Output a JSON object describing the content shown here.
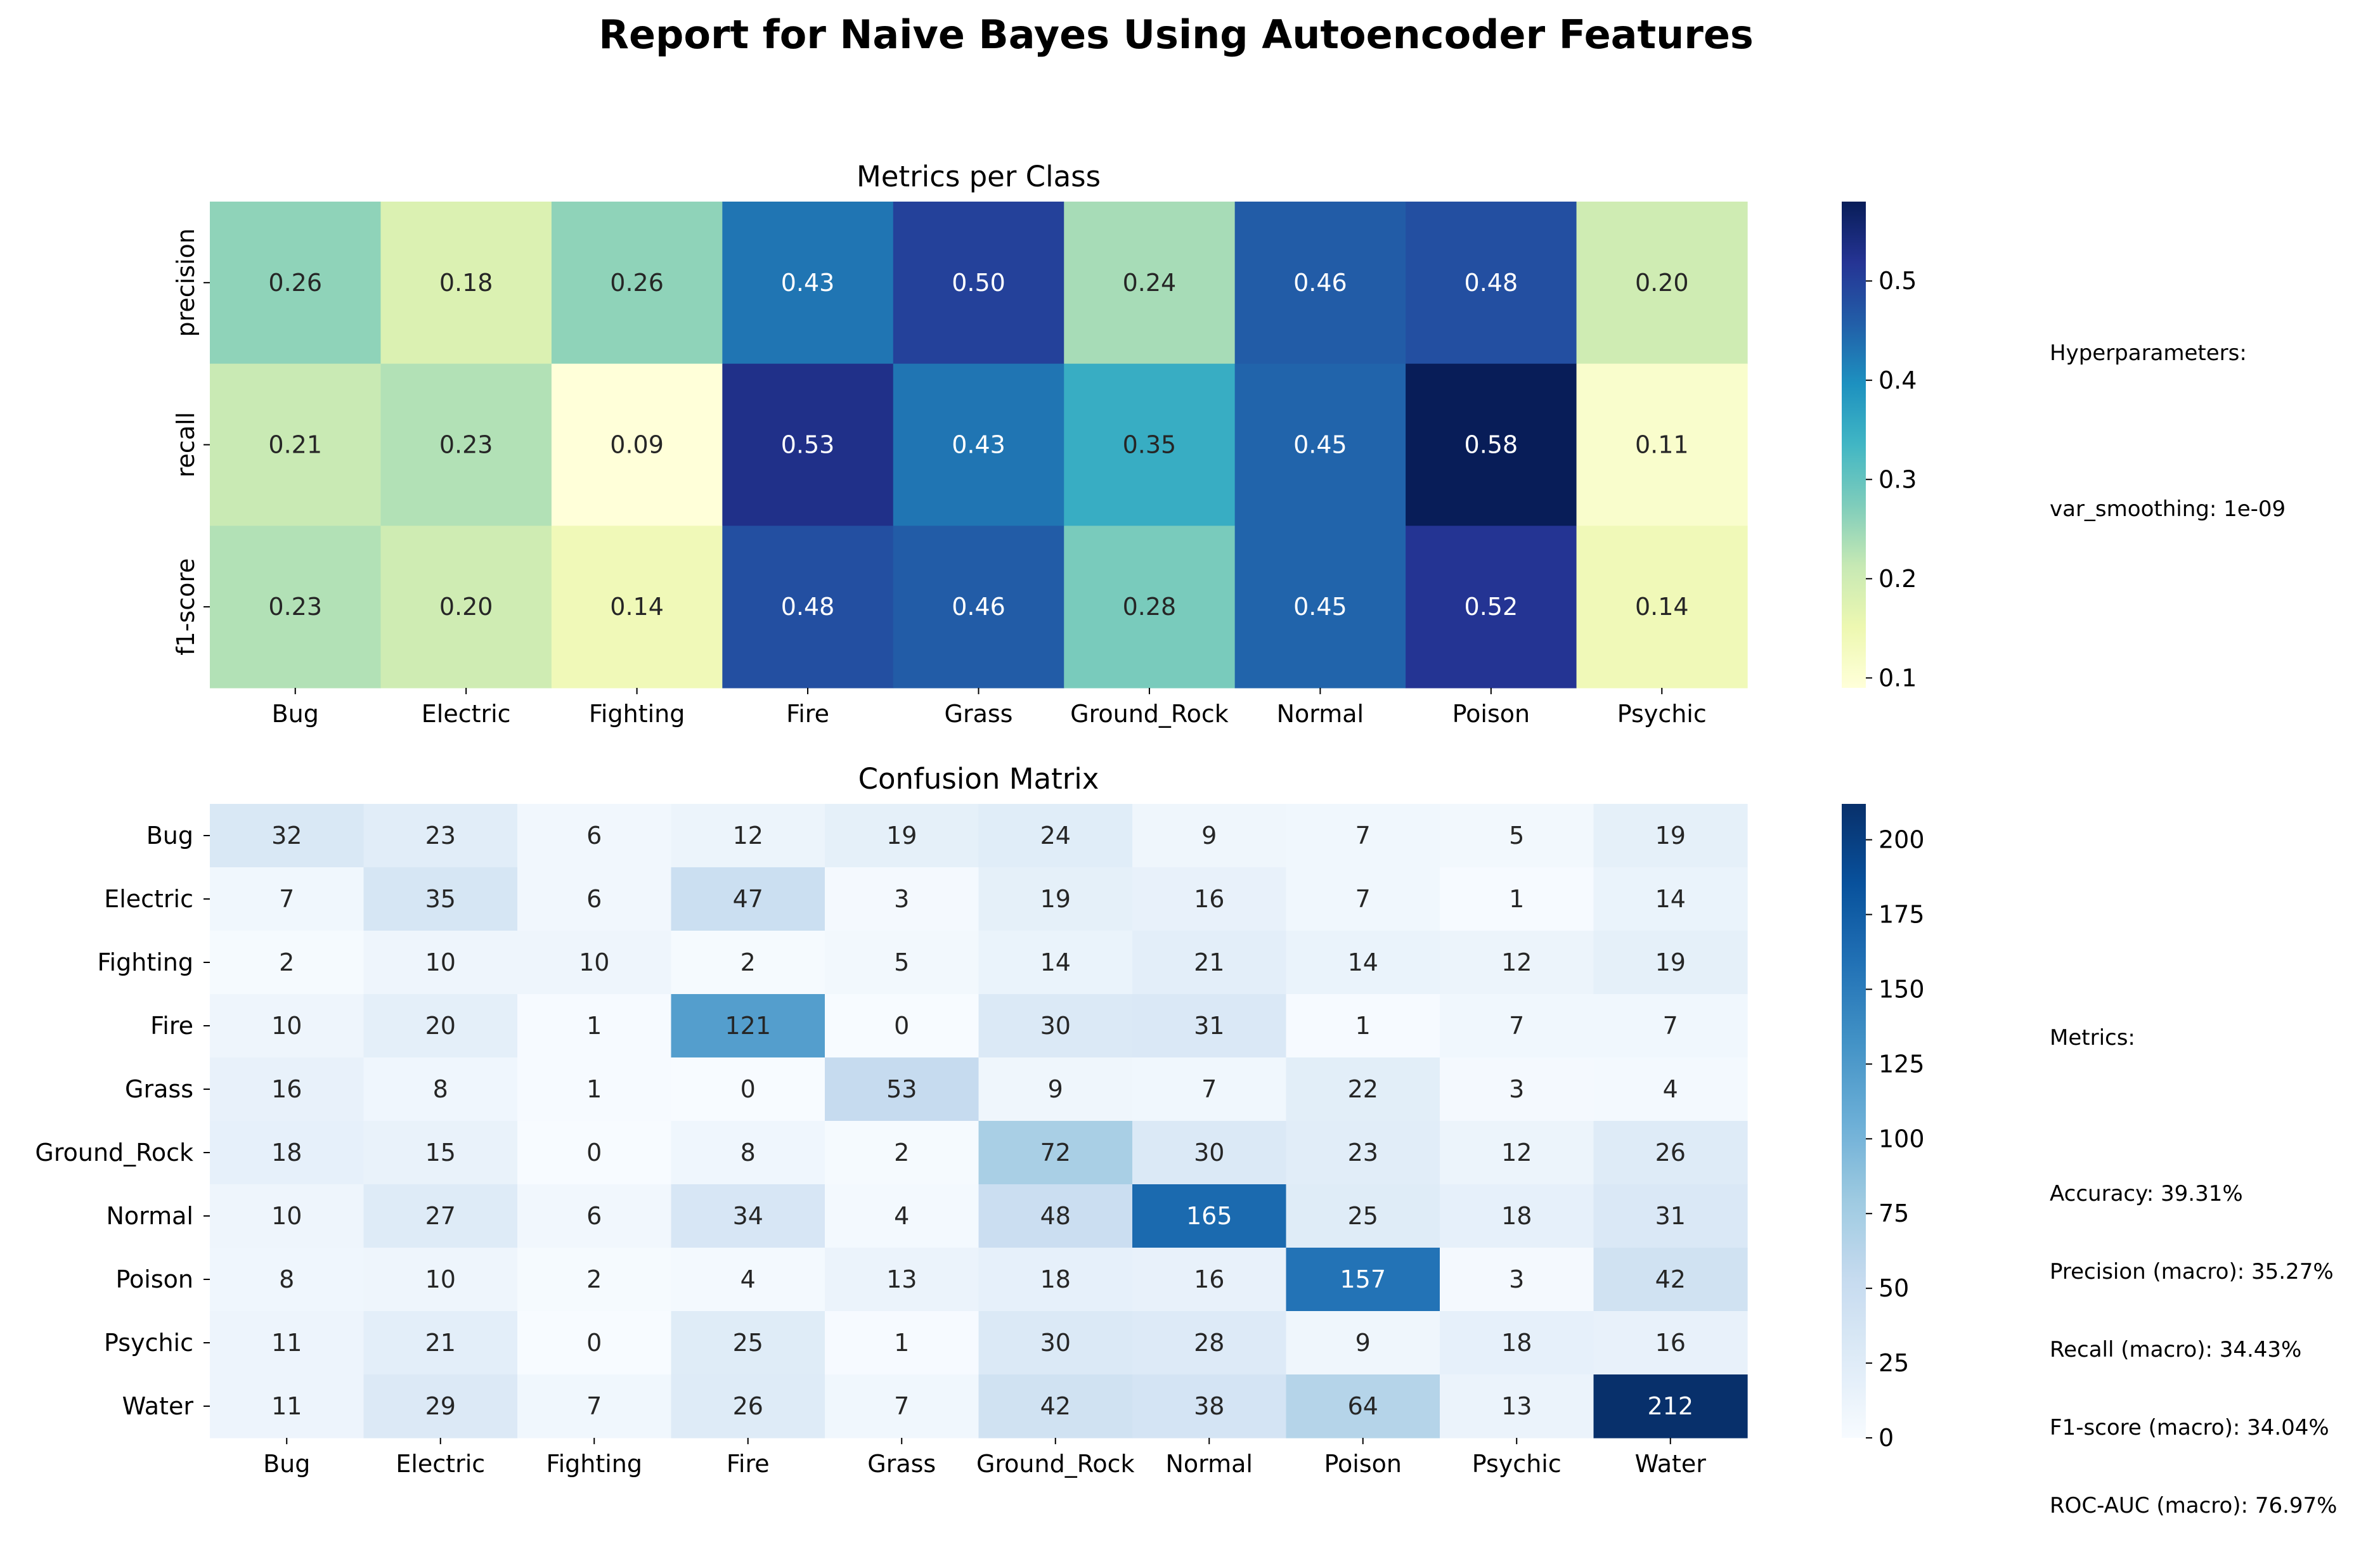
{
  "figure": {
    "title": "Report for Naive Bayes Using Autoencoder Features"
  },
  "side_panel": {
    "hyperparameters_heading": "Hyperparameters:",
    "hyperparameters": [
      "var_smoothing: 1e-09"
    ],
    "metrics_heading": "Metrics:",
    "metrics": [
      "Accuracy: 39.31%",
      "Precision (macro): 35.27%",
      "Recall (macro): 34.43%",
      "F1-score (macro): 34.04%",
      "ROC-AUC (macro): 76.97%"
    ]
  },
  "chart_data": [
    {
      "type": "heatmap",
      "title": "Metrics per Class",
      "colormap": "YlGnBu",
      "x_labels": [
        "Bug",
        "Electric",
        "Fighting",
        "Fire",
        "Grass",
        "Ground_Rock",
        "Normal",
        "Poison",
        "Psychic"
      ],
      "y_labels": [
        "precision",
        "recall",
        "f1-score"
      ],
      "values": [
        [
          0.26,
          0.18,
          0.26,
          0.43,
          0.5,
          0.24,
          0.46,
          0.48,
          0.2
        ],
        [
          0.21,
          0.23,
          0.09,
          0.53,
          0.43,
          0.35,
          0.45,
          0.58,
          0.11
        ],
        [
          0.23,
          0.2,
          0.14,
          0.48,
          0.46,
          0.28,
          0.45,
          0.52,
          0.14
        ]
      ],
      "cell_labels": [
        [
          "0.26",
          "0.18",
          "0.26",
          "0.43",
          "0.50",
          "0.24",
          "0.46",
          "0.48",
          "0.20"
        ],
        [
          "0.21",
          "0.23",
          "0.09",
          "0.53",
          "0.43",
          "0.35",
          "0.45",
          "0.58",
          "0.11"
        ],
        [
          "0.23",
          "0.20",
          "0.14",
          "0.48",
          "0.46",
          "0.28",
          "0.45",
          "0.52",
          "0.14"
        ]
      ],
      "color_range": [
        0.09,
        0.58
      ],
      "colorbar_ticks": [
        0.1,
        0.2,
        0.3,
        0.4,
        0.5
      ],
      "colorbar_tick_labels": [
        "0.1",
        "0.2",
        "0.3",
        "0.4",
        "0.5"
      ]
    },
    {
      "type": "heatmap",
      "title": "Confusion Matrix",
      "colormap": "Blues",
      "x_labels": [
        "Bug",
        "Electric",
        "Fighting",
        "Fire",
        "Grass",
        "Ground_Rock",
        "Normal",
        "Poison",
        "Psychic",
        "Water"
      ],
      "y_labels": [
        "Bug",
        "Electric",
        "Fighting",
        "Fire",
        "Grass",
        "Ground_Rock",
        "Normal",
        "Poison",
        "Psychic",
        "Water"
      ],
      "values": [
        [
          32,
          23,
          6,
          12,
          19,
          24,
          9,
          7,
          5,
          19
        ],
        [
          7,
          35,
          6,
          47,
          3,
          19,
          16,
          7,
          1,
          14
        ],
        [
          2,
          10,
          10,
          2,
          5,
          14,
          21,
          14,
          12,
          19
        ],
        [
          10,
          20,
          1,
          121,
          0,
          30,
          31,
          1,
          7,
          7
        ],
        [
          16,
          8,
          1,
          0,
          53,
          9,
          7,
          22,
          3,
          4
        ],
        [
          18,
          15,
          0,
          8,
          2,
          72,
          30,
          23,
          12,
          26
        ],
        [
          10,
          27,
          6,
          34,
          4,
          48,
          165,
          25,
          18,
          31
        ],
        [
          8,
          10,
          2,
          4,
          13,
          18,
          16,
          157,
          3,
          42
        ],
        [
          11,
          21,
          0,
          25,
          1,
          30,
          28,
          9,
          18,
          16
        ],
        [
          11,
          29,
          7,
          26,
          7,
          42,
          38,
          64,
          13,
          212
        ]
      ],
      "cell_labels": [
        [
          "32",
          "23",
          "6",
          "12",
          "19",
          "24",
          "9",
          "7",
          "5",
          "19"
        ],
        [
          "7",
          "35",
          "6",
          "47",
          "3",
          "19",
          "16",
          "7",
          "1",
          "14"
        ],
        [
          "2",
          "10",
          "10",
          "2",
          "5",
          "14",
          "21",
          "14",
          "12",
          "19"
        ],
        [
          "10",
          "20",
          "1",
          "121",
          "0",
          "30",
          "31",
          "1",
          "7",
          "7"
        ],
        [
          "16",
          "8",
          "1",
          "0",
          "53",
          "9",
          "7",
          "22",
          "3",
          "4"
        ],
        [
          "18",
          "15",
          "0",
          "8",
          "2",
          "72",
          "30",
          "23",
          "12",
          "26"
        ],
        [
          "10",
          "27",
          "6",
          "34",
          "4",
          "48",
          "165",
          "25",
          "18",
          "31"
        ],
        [
          "8",
          "10",
          "2",
          "4",
          "13",
          "18",
          "16",
          "157",
          "3",
          "42"
        ],
        [
          "11",
          "21",
          "0",
          "25",
          "1",
          "30",
          "28",
          "9",
          "18",
          "16"
        ],
        [
          "11",
          "29",
          "7",
          "26",
          "7",
          "42",
          "38",
          "64",
          "13",
          "212"
        ]
      ],
      "color_range": [
        0,
        212
      ],
      "colorbar_ticks": [
        0,
        25,
        50,
        75,
        100,
        125,
        150,
        175,
        200
      ],
      "colorbar_tick_labels": [
        "0",
        "25",
        "50",
        "75",
        "100",
        "125",
        "150",
        "175",
        "200"
      ]
    }
  ]
}
